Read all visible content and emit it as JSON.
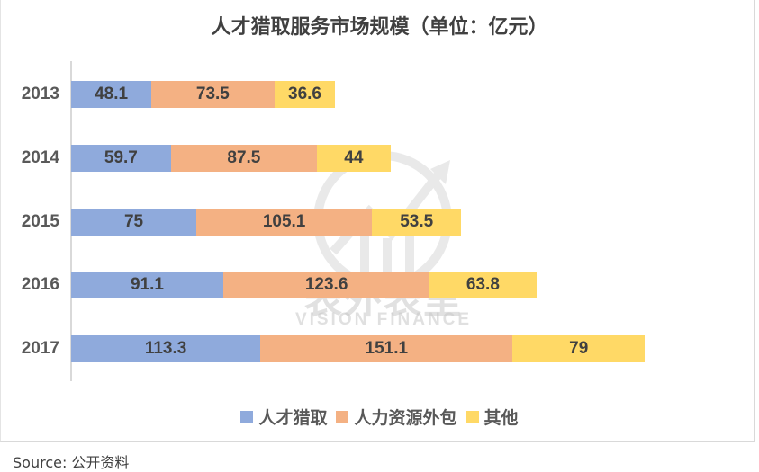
{
  "title": "人才猎取服务市场规模（单位：亿元）",
  "source": "Source:  公开资料",
  "watermark": {
    "cn": "表外表里",
    "en": "VISION FINANCE"
  },
  "colors": {
    "headhunting": "#8faadc",
    "hr_outsourcing": "#f4b183",
    "other": "#ffd966"
  },
  "legend": [
    {
      "label": "人才猎取",
      "color": "#8faadc"
    },
    {
      "label": "人力资源外包",
      "color": "#f4b183"
    },
    {
      "label": "其他",
      "color": "#ffd966"
    }
  ],
  "rows": [
    {
      "year": "2013",
      "values": [
        "48.1",
        "73.5",
        "36.6"
      ]
    },
    {
      "year": "2014",
      "values": [
        "59.7",
        "87.5",
        "44"
      ]
    },
    {
      "year": "2015",
      "values": [
        "75",
        "105.1",
        "53.5"
      ]
    },
    {
      "year": "2016",
      "values": [
        "91.1",
        "123.6",
        "63.8"
      ]
    },
    {
      "year": "2017",
      "values": [
        "113.3",
        "151.1",
        "79"
      ]
    }
  ],
  "chart_data": {
    "type": "bar",
    "orientation": "horizontal",
    "stacked": true,
    "title": "人才猎取服务市场规模（单位：亿元）",
    "categories": [
      "2013",
      "2014",
      "2015",
      "2016",
      "2017"
    ],
    "series": [
      {
        "name": "人才猎取",
        "values": [
          48.1,
          59.7,
          75,
          91.1,
          113.3
        ]
      },
      {
        "name": "人力资源外包",
        "values": [
          73.5,
          87.5,
          105.1,
          123.6,
          151.1
        ]
      },
      {
        "name": "其他",
        "values": [
          36.6,
          44,
          53.5,
          63.8,
          79
        ]
      }
    ],
    "xlabel": "",
    "ylabel": "",
    "grid": false,
    "legend_position": "bottom",
    "data_labels": true,
    "source": "Source: 公开资料"
  }
}
